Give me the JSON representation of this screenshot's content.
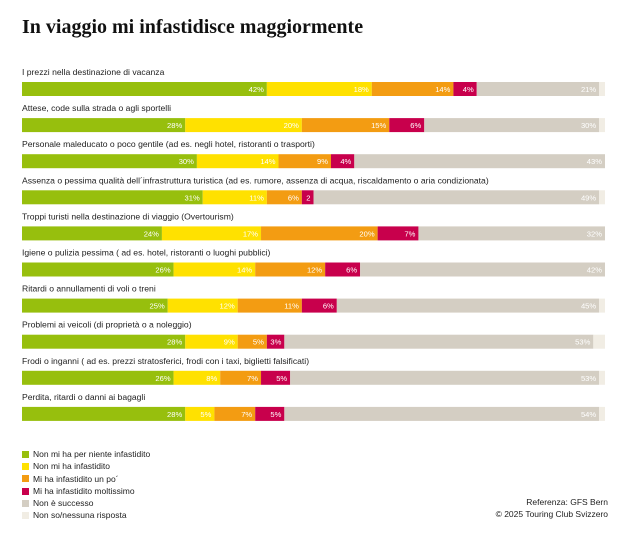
{
  "title": "In viaggio mi infastidisce maggiormente",
  "chart_data": {
    "type": "bar",
    "orientation": "horizontal",
    "stacked": true,
    "value_unit": "%",
    "categories": [
      "I prezzi nella destinazione di vacanza",
      "Attese, code sulla strada o agli sportelli",
      "Personale maleducato o poco gentile (ad es. negli hotel, ristoranti o trasporti)",
      "Assenza o pessima qualità dell´infrastruttura turistica (ad es. rumore, assenza di acqua, riscaldamento o aria condizionata)",
      "Troppi turisti nella destinazione di viaggio (Overtourism)",
      "Igiene o pulizia pessima ( ad es. hotel, ristoranti o luoghi pubblici)",
      "Ritardi o annullamenti di voli o treni",
      "Problemi ai veicoli (di proprietà o a noleggio)",
      "Frodi o inganni ( ad es. prezzi stratosferici, frodi con i taxi, biglietti falsificati)",
      "Perdita, ritardi o danni ai bagagli"
    ],
    "series": [
      {
        "name": "Non mi ha per niente infastidito",
        "color": "#97bf0d",
        "values": [
          42,
          28,
          30,
          31,
          24,
          26,
          25,
          28,
          26,
          28
        ]
      },
      {
        "name": "Non mi ha infastidito",
        "color": "#ffe100",
        "values": [
          18,
          20,
          14,
          11,
          17,
          14,
          12,
          9,
          8,
          5
        ]
      },
      {
        "name": "Mi ha infastidito un po´",
        "color": "#f39c12",
        "values": [
          14,
          15,
          9,
          6,
          20,
          12,
          11,
          5,
          7,
          7
        ]
      },
      {
        "name": "Mi ha infastidito moltissimo",
        "color": "#c8004c",
        "values": [
          4,
          6,
          4,
          2,
          7,
          6,
          6,
          3,
          5,
          5
        ]
      },
      {
        "name": "Non è successo",
        "color": "#d4cec3",
        "values": [
          21,
          30,
          43,
          49,
          32,
          42,
          45,
          53,
          53,
          54
        ]
      },
      {
        "name": "Non so/nessuna risposta",
        "color": "#f1ede4",
        "values": [
          1,
          1,
          0,
          1,
          0,
          0,
          1,
          2,
          1,
          1
        ]
      }
    ],
    "xlim": [
      0,
      100
    ],
    "grid": false,
    "legend_position": "bottom-left",
    "label_color": "#ffffff"
  },
  "credits": {
    "reference": "Referenza: GFS Bern",
    "copyright": "© 2025 Touring Club Svizzero"
  }
}
